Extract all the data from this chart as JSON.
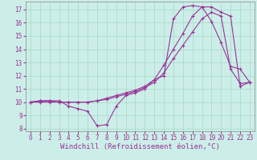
{
  "bg_color": "#cceee8",
  "grid_color": "#aaddcc",
  "line_color": "#993399",
  "xlim": [
    -0.5,
    23.5
  ],
  "ylim": [
    7.8,
    17.6
  ],
  "yticks": [
    8,
    9,
    10,
    11,
    12,
    13,
    14,
    15,
    16,
    17
  ],
  "xticks": [
    0,
    1,
    2,
    3,
    4,
    5,
    6,
    7,
    8,
    9,
    10,
    11,
    12,
    13,
    14,
    15,
    16,
    17,
    18,
    19,
    20,
    21,
    22,
    23
  ],
  "line1_x": [
    0,
    1,
    2,
    3,
    4,
    5,
    6,
    7,
    8,
    9,
    10,
    11,
    12,
    13,
    14,
    15,
    16,
    17,
    18,
    19,
    20,
    21,
    22,
    23
  ],
  "line1_y": [
    10.0,
    10.1,
    10.1,
    10.1,
    9.7,
    9.5,
    9.3,
    8.2,
    8.3,
    9.7,
    10.5,
    10.7,
    11.0,
    11.7,
    12.0,
    16.3,
    17.2,
    17.3,
    17.2,
    16.1,
    14.5,
    12.7,
    12.5,
    11.5
  ],
  "line2_x": [
    0,
    1,
    2,
    3,
    4,
    5,
    6,
    7,
    8,
    9,
    10,
    11,
    12,
    13,
    14,
    15,
    16,
    17,
    18,
    19,
    20,
    21,
    22,
    23
  ],
  "line2_y": [
    10.0,
    10.1,
    10.1,
    10.0,
    10.0,
    10.0,
    10.0,
    10.1,
    10.3,
    10.5,
    10.7,
    10.9,
    11.2,
    11.7,
    12.8,
    14.0,
    15.2,
    16.5,
    17.2,
    17.2,
    16.8,
    16.5,
    11.2,
    11.5
  ],
  "line3_x": [
    0,
    1,
    2,
    3,
    4,
    5,
    6,
    7,
    8,
    9,
    10,
    11,
    12,
    13,
    14,
    15,
    16,
    17,
    18,
    19,
    20,
    21,
    22,
    23
  ],
  "line3_y": [
    10.0,
    10.0,
    10.0,
    10.0,
    10.0,
    10.0,
    10.0,
    10.1,
    10.2,
    10.4,
    10.6,
    10.8,
    11.1,
    11.5,
    12.2,
    13.3,
    14.3,
    15.3,
    16.3,
    16.8,
    16.5,
    12.5,
    11.4,
    11.5
  ],
  "xlabel": "Windchill (Refroidissement éolien,°C)",
  "marker": "+",
  "markersize": 3,
  "linewidth": 0.8,
  "tick_label_fontsize": 5.5,
  "xlabel_fontsize": 6.5
}
